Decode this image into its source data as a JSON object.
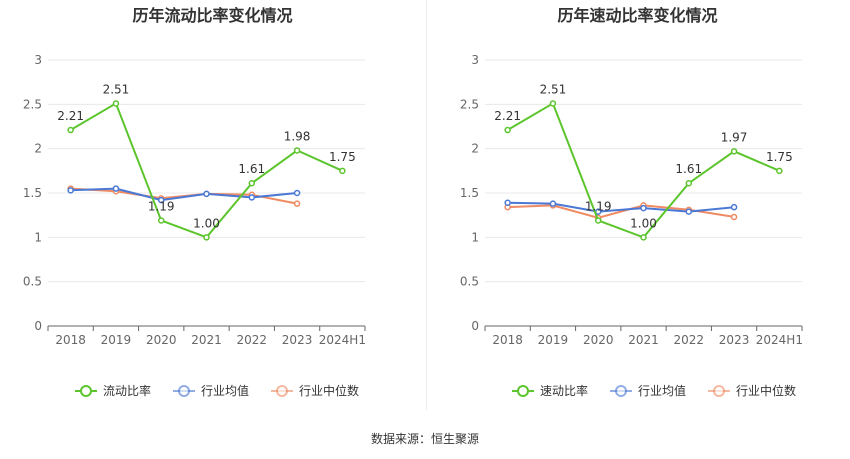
{
  "source_label": "数据来源：恒生聚源",
  "colors": {
    "primary": "#5cc52d",
    "avg": "#4a78d4",
    "median": "#ef8a62",
    "grid": "#e8e8e8",
    "axis": "#666666"
  },
  "chart_data": [
    {
      "type": "line",
      "title": "历年流动比率变化情况",
      "categories": [
        "2018",
        "2019",
        "2020",
        "2021",
        "2022",
        "2023",
        "2024H1"
      ],
      "ylim": [
        0,
        3
      ],
      "yticks": [
        "0",
        "0.5",
        "1",
        "1.5",
        "2",
        "2.5",
        "3"
      ],
      "series": [
        {
          "name": "流动比率",
          "values": [
            2.21,
            2.51,
            1.19,
            1.0,
            1.61,
            1.98,
            1.75
          ],
          "labels": [
            "2.21",
            "2.51",
            "1.19",
            "1.00",
            "1.61",
            "1.98",
            "1.75"
          ]
        },
        {
          "name": "行业均值",
          "values": [
            1.53,
            1.55,
            1.42,
            1.49,
            1.45,
            1.5,
            null
          ]
        },
        {
          "name": "行业中位数",
          "values": [
            1.55,
            1.52,
            1.44,
            1.49,
            1.48,
            1.38,
            null
          ]
        }
      ]
    },
    {
      "type": "line",
      "title": "历年速动比率变化情况",
      "categories": [
        "2018",
        "2019",
        "2020",
        "2021",
        "2022",
        "2023",
        "2024H1"
      ],
      "ylim": [
        0,
        3
      ],
      "yticks": [
        "0",
        "0.5",
        "1",
        "1.5",
        "2",
        "2.5",
        "3"
      ],
      "series": [
        {
          "name": "速动比率",
          "values": [
            2.21,
            2.51,
            1.19,
            1.0,
            1.61,
            1.97,
            1.75
          ],
          "labels": [
            "2.21",
            "2.51",
            "1.19",
            "1.00",
            "1.61",
            "1.97",
            "1.75"
          ]
        },
        {
          "name": "行业均值",
          "values": [
            1.39,
            1.38,
            1.29,
            1.33,
            1.29,
            1.34,
            null
          ]
        },
        {
          "name": "行业中位数",
          "values": [
            1.34,
            1.36,
            1.22,
            1.36,
            1.31,
            1.23,
            null
          ]
        }
      ]
    }
  ]
}
